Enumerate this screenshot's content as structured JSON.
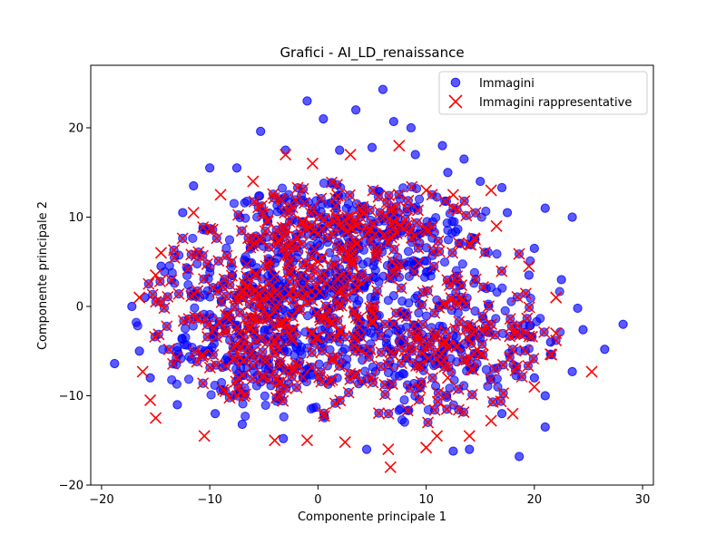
{
  "chart_data": {
    "type": "scatter",
    "title": "Grafici - AI_LD_renaissance",
    "xlabel": "Componente principale 1",
    "ylabel": "Componente principale 2",
    "xlim": [
      -21,
      31
    ],
    "ylim": [
      -20,
      27
    ],
    "xticks": [
      -20,
      -10,
      0,
      10,
      20,
      30
    ],
    "yticks": [
      -20,
      -10,
      0,
      10,
      20
    ],
    "xtick_labels": [
      "−20",
      "−10",
      "0",
      "10",
      "20",
      "30"
    ],
    "ytick_labels": [
      "−20",
      "−10",
      "0",
      "10",
      "20"
    ],
    "grid": false,
    "legend_position": "top-right",
    "series": [
      {
        "name": "Immagini",
        "marker": "circle",
        "color": "#0000ff",
        "points": [
          [
            -18.8,
            -6.4
          ],
          [
            -17.2,
            0.0
          ],
          [
            28.2,
            -2.0
          ],
          [
            26.5,
            -4.8
          ],
          [
            24.5,
            -2.6
          ],
          [
            23.5,
            10.0
          ],
          [
            21.0,
            11.0
          ],
          [
            21.0,
            -13.5
          ],
          [
            18.6,
            -16.8
          ],
          [
            6.0,
            24.3
          ],
          [
            -1.0,
            23.0
          ],
          [
            3.5,
            22.0
          ],
          [
            -10.0,
            15.5
          ],
          [
            -5.3,
            19.6
          ],
          [
            0.5,
            21.0
          ],
          [
            7.0,
            20.7
          ],
          [
            8.6,
            20.0
          ],
          [
            11.5,
            18.0
          ],
          [
            13.5,
            16.5
          ],
          [
            17.0,
            13.3
          ],
          [
            20.0,
            6.5
          ],
          [
            22.5,
            3.0
          ],
          [
            24.0,
            -0.2
          ],
          [
            23.5,
            -7.3
          ],
          [
            21.0,
            -10.0
          ],
          [
            14.0,
            -16.0
          ],
          [
            12.5,
            -16.2
          ],
          [
            4.5,
            -16.0
          ],
          [
            -3.2,
            -14.8
          ],
          [
            -7.0,
            -13.2
          ],
          [
            -9.5,
            -12.0
          ],
          [
            -13.0,
            -11.0
          ],
          [
            -15.5,
            -8.0
          ],
          [
            -16.5,
            -5.0
          ],
          [
            -16.0,
            1.0
          ],
          [
            -14.5,
            4.5
          ],
          [
            -12.5,
            10.5
          ],
          [
            -11.5,
            13.5
          ],
          [
            -7.5,
            15.5
          ],
          [
            -3.0,
            17.5
          ],
          [
            2.0,
            17.5
          ],
          [
            5.0,
            17.8
          ],
          [
            9.0,
            17.0
          ],
          [
            12.0,
            15.0
          ],
          [
            15.0,
            14.0
          ],
          [
            17.5,
            10.5
          ],
          [
            19.5,
            3.5
          ],
          [
            21.5,
            -4.0
          ],
          [
            20.0,
            -8.0
          ],
          [
            17.0,
            -12.0
          ]
        ]
      },
      {
        "name": "Immagini rappresentative",
        "marker": "x",
        "color": "#ff0000",
        "points": [
          [
            -16.5,
            1.0
          ],
          [
            -15.0,
            3.5
          ],
          [
            -14.5,
            6.0
          ],
          [
            -16.2,
            -7.3
          ],
          [
            -15.5,
            -10.5
          ],
          [
            -15.0,
            -12.5
          ],
          [
            -10.5,
            -14.5
          ],
          [
            -4.0,
            -15.0
          ],
          [
            -1.0,
            -15.0
          ],
          [
            2.5,
            -15.2
          ],
          [
            6.5,
            -16.0
          ],
          [
            6.7,
            -18.0
          ],
          [
            10.0,
            -15.8
          ],
          [
            11.0,
            -14.5
          ],
          [
            14.0,
            -14.5
          ],
          [
            16.0,
            -12.8
          ],
          [
            18.0,
            -12.0
          ],
          [
            20.0,
            -9.0
          ],
          [
            22.0,
            -3.0
          ],
          [
            25.3,
            -7.3
          ],
          [
            22.0,
            1.0
          ],
          [
            19.5,
            4.5
          ],
          [
            16.5,
            9.0
          ],
          [
            16.0,
            13.0
          ],
          [
            12.5,
            12.5
          ],
          [
            10.0,
            13.0
          ],
          [
            7.5,
            18.0
          ],
          [
            3.0,
            17.0
          ],
          [
            -0.5,
            16.0
          ],
          [
            -3.0,
            17.0
          ],
          [
            -6.0,
            14.0
          ],
          [
            -9.0,
            12.5
          ],
          [
            -11.5,
            10.5
          ],
          [
            -8.0,
            5.0
          ],
          [
            -5.0,
            2.0
          ],
          [
            0.0,
            5.0
          ],
          [
            3.0,
            10.0
          ],
          [
            5.0,
            0.0
          ],
          [
            8.0,
            -5.0
          ],
          [
            12.0,
            -8.0
          ]
        ]
      }
    ]
  }
}
